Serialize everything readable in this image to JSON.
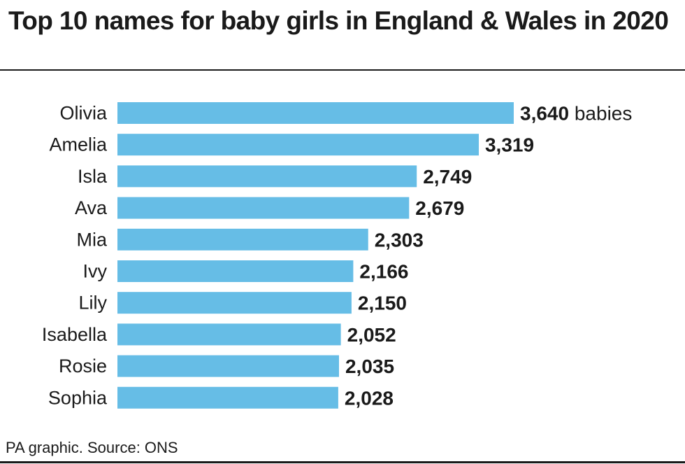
{
  "title": "Top 10 names for baby girls in England & Wales in 2020",
  "source": "PA graphic. Source: ONS",
  "colors": {
    "bar": "#66bde6",
    "text": "#1a1a1a",
    "background": "#ffffff"
  },
  "chart_data": {
    "type": "bar",
    "orientation": "horizontal",
    "title": "Top 10 names for baby girls in England & Wales in 2020",
    "categories": [
      "Olivia",
      "Amelia",
      "Isla",
      "Ava",
      "Mia",
      "Ivy",
      "Lily",
      "Isabella",
      "Rosie",
      "Sophia"
    ],
    "values": [
      3640,
      3319,
      2749,
      2679,
      2303,
      2166,
      2150,
      2052,
      2035,
      2028
    ],
    "value_labels": [
      "3,640",
      "3,319",
      "2,749",
      "2,679",
      "2,303",
      "2,166",
      "2,150",
      "2,052",
      "2,035",
      "2,028"
    ],
    "first_value_unit": "babies",
    "xlim": [
      0,
      3640
    ],
    "grid": false,
    "legend": "none"
  }
}
